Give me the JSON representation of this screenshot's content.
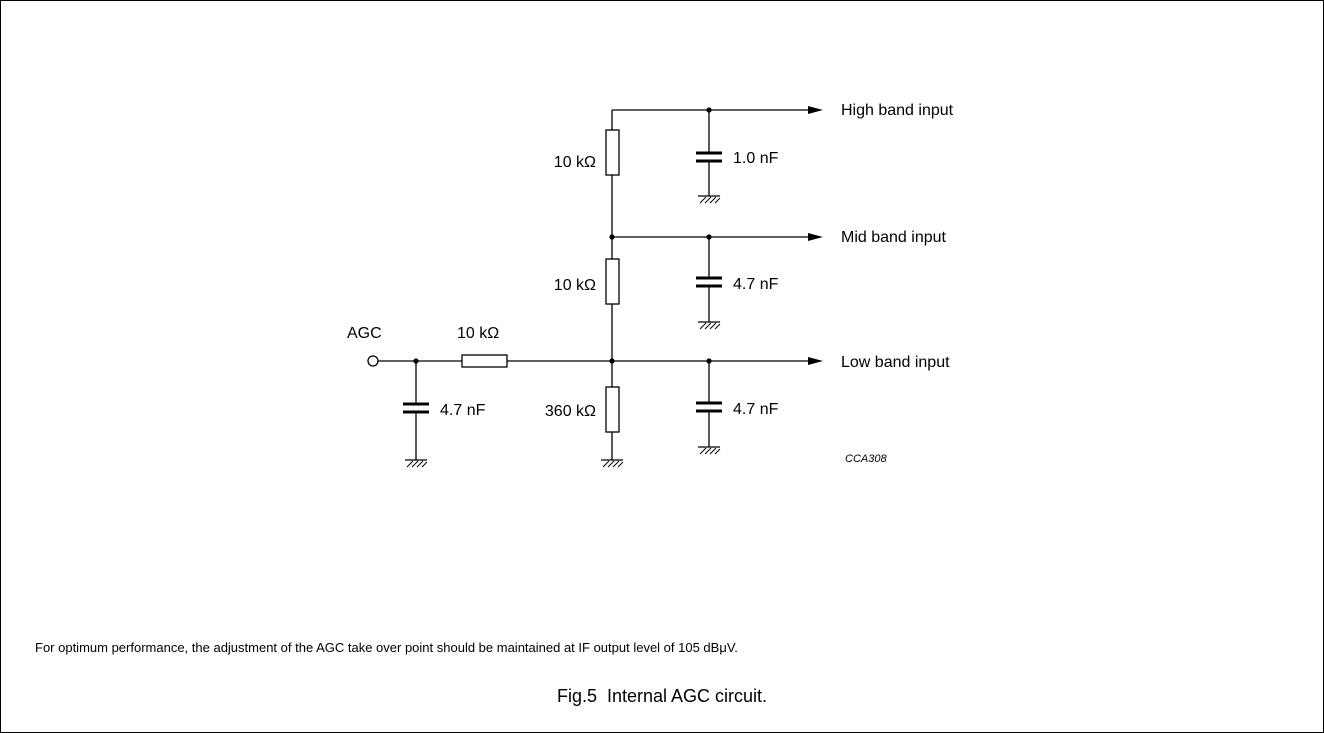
{
  "labels": {
    "agc": "AGC",
    "r_series": "10 kΩ",
    "r_top": "10 kΩ",
    "r_mid": "10 kΩ",
    "r_bottom": "360 kΩ",
    "c_agc": "4.7 nF",
    "c_high": "1.0 nF",
    "c_mid": "4.7 nF",
    "c_low": "4.7 nF",
    "out_high": "High band input",
    "out_mid": "Mid band input",
    "out_low": "Low band input",
    "figure_code": "CCA308"
  },
  "note": "For optimum performance, the adjustment of the AGC take over point should be maintained at IF output level of 105 dBμV.",
  "caption": "Fig.5  Internal AGC circuit."
}
